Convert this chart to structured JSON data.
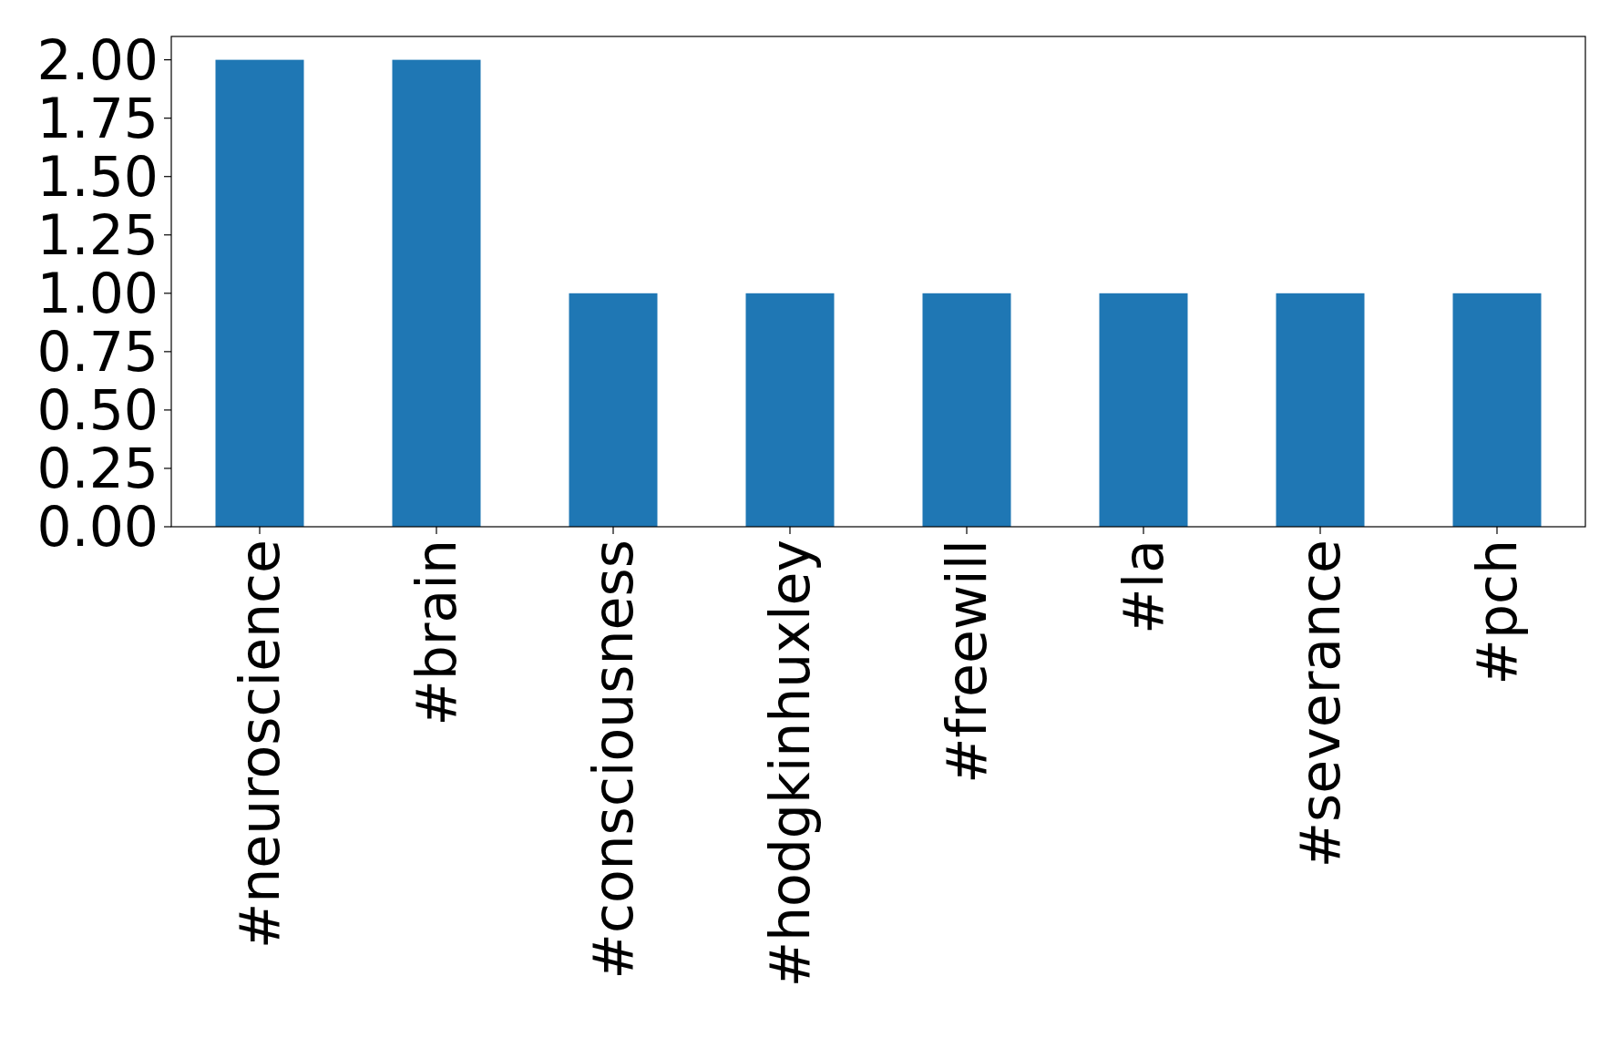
{
  "chart_data": {
    "type": "bar",
    "categories": [
      "#neuroscience",
      "#brain",
      "#consciousness",
      "#hodgkinhuxley",
      "#freewill",
      "#la",
      "#severance",
      "#pch"
    ],
    "values": [
      2,
      2,
      1,
      1,
      1,
      1,
      1,
      1
    ],
    "color": "#1f77b4",
    "ylim": [
      0,
      2.1
    ],
    "yticks": [
      {
        "value": 0,
        "label": "0.00"
      },
      {
        "value": 0.25,
        "label": "0.25"
      },
      {
        "value": 0.5,
        "label": "0.50"
      },
      {
        "value": 0.75,
        "label": "0.75"
      },
      {
        "value": 1,
        "label": "1.00"
      },
      {
        "value": 1.25,
        "label": "1.25"
      },
      {
        "value": 1.5,
        "label": "1.50"
      },
      {
        "value": 1.75,
        "label": "1.75"
      },
      {
        "value": 2,
        "label": "2.00"
      }
    ],
    "grid": false
  }
}
